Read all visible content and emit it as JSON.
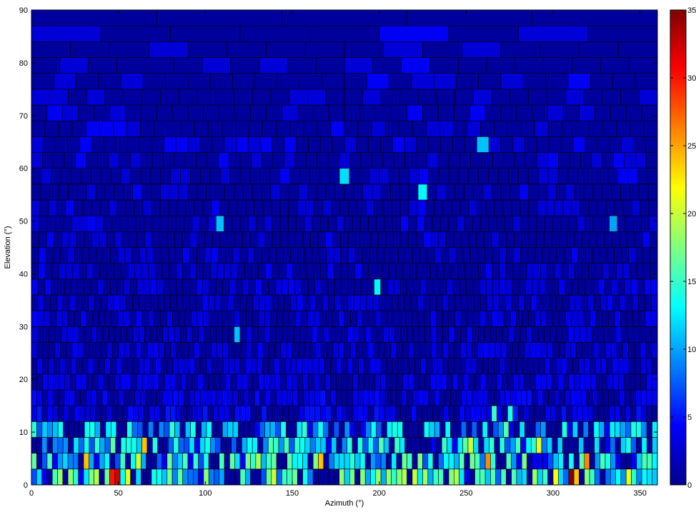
{
  "chart_data": {
    "type": "heatmap",
    "title": "",
    "xlabel": "Azimuth (°)",
    "ylabel": "Elevation (°)",
    "xlim": [
      0,
      360
    ],
    "ylim": [
      0,
      90
    ],
    "x_ticks": [
      0,
      50,
      100,
      150,
      200,
      250,
      300,
      350
    ],
    "y_ticks": [
      0,
      10,
      20,
      30,
      40,
      50,
      60,
      70,
      80,
      90
    ],
    "colorbar": {
      "colormap": "jet",
      "range": [
        0,
        35
      ],
      "ticks": [
        0,
        5,
        10,
        15,
        20,
        25,
        30,
        35
      ]
    },
    "background_value": 1,
    "band_height_deg": 3,
    "hot_cells": [
      {
        "az": 48,
        "el": 0,
        "v": 32
      },
      {
        "az": 45,
        "el": 0,
        "v": 30
      },
      {
        "az": 32,
        "el": 3,
        "v": 24
      },
      {
        "az": 55,
        "el": 0,
        "v": 21
      },
      {
        "az": 38,
        "el": 0,
        "v": 19
      },
      {
        "az": 60,
        "el": 3,
        "v": 20
      },
      {
        "az": 65,
        "el": 6,
        "v": 24
      },
      {
        "az": 100,
        "el": 0,
        "v": 18
      },
      {
        "az": 140,
        "el": 0,
        "v": 20
      },
      {
        "az": 165,
        "el": 3,
        "v": 24
      },
      {
        "az": 185,
        "el": 0,
        "v": 17
      },
      {
        "az": 215,
        "el": 0,
        "v": 19
      },
      {
        "az": 220,
        "el": 0,
        "v": 20
      },
      {
        "az": 245,
        "el": 0,
        "v": 19
      },
      {
        "az": 250,
        "el": 6,
        "v": 20
      },
      {
        "az": 262,
        "el": 3,
        "v": 26
      },
      {
        "az": 290,
        "el": 6,
        "v": 21
      },
      {
        "az": 300,
        "el": 0,
        "v": 22
      },
      {
        "az": 310,
        "el": 0,
        "v": 35
      },
      {
        "az": 313,
        "el": 0,
        "v": 24
      },
      {
        "az": 320,
        "el": 3,
        "v": 26
      },
      {
        "az": 343,
        "el": 0,
        "v": 21
      },
      {
        "az": 22,
        "el": 0,
        "v": 18
      },
      {
        "az": 130,
        "el": 3,
        "v": 19
      },
      {
        "az": 200,
        "el": 6,
        "v": 16
      },
      {
        "az": 270,
        "el": 9,
        "v": 16
      },
      {
        "az": 264,
        "el": 12,
        "v": 15
      },
      {
        "az": 275,
        "el": 12,
        "v": 14
      },
      {
        "az": 5,
        "el": 81,
        "v": 11
      },
      {
        "az": 239,
        "el": 69,
        "v": 12
      },
      {
        "az": 255,
        "el": 63,
        "v": 11
      },
      {
        "az": 177,
        "el": 57,
        "v": 12
      },
      {
        "az": 222,
        "el": 54,
        "v": 13
      },
      {
        "az": 107,
        "el": 48,
        "v": 11
      },
      {
        "az": 232,
        "el": 48,
        "v": 10
      },
      {
        "az": 330,
        "el": 48,
        "v": 10
      },
      {
        "az": 230,
        "el": 42,
        "v": 11
      },
      {
        "az": 195,
        "el": 36,
        "v": 13
      },
      {
        "az": 100,
        "el": 30,
        "v": 10
      },
      {
        "az": 115,
        "el": 27,
        "v": 11
      }
    ]
  }
}
